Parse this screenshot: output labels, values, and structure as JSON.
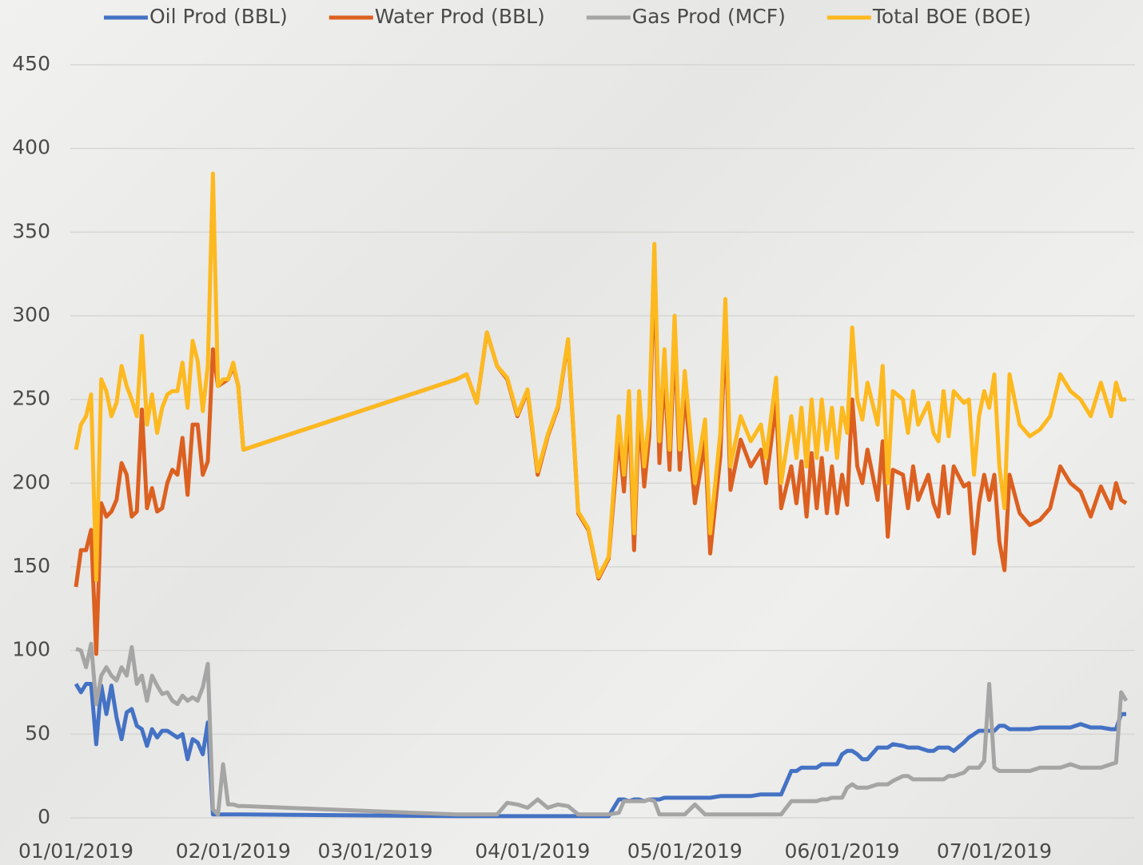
{
  "chart_data": {
    "type": "line",
    "x": [
      "01/01/2019",
      "01/02/2019",
      "01/03/2019",
      "01/04/2019",
      "01/05/2019",
      "01/06/2019",
      "01/07/2019",
      "01/08/2019",
      "01/09/2019",
      "01/10/2019",
      "01/11/2019",
      "01/12/2019",
      "01/13/2019",
      "01/14/2019",
      "01/15/2019",
      "01/16/2019",
      "01/17/2019",
      "01/18/2019",
      "01/19/2019",
      "01/20/2019",
      "01/21/2019",
      "01/22/2019",
      "01/23/2019",
      "01/24/2019",
      "01/25/2019",
      "01/26/2019",
      "01/27/2019",
      "01/28/2019",
      "01/29/2019",
      "01/30/2019",
      "01/31/2019",
      "02/01/2019",
      "02/02/2019",
      "02/03/2019",
      "03/17/2019",
      "03/19/2019",
      "03/21/2019",
      "03/23/2019",
      "03/25/2019",
      "03/27/2019",
      "03/29/2019",
      "03/31/2019",
      "04/02/2019",
      "04/04/2019",
      "04/06/2019",
      "04/08/2019",
      "04/10/2019",
      "04/12/2019",
      "04/14/2019",
      "04/16/2019",
      "04/18/2019",
      "04/19/2019",
      "04/20/2019",
      "04/21/2019",
      "04/22/2019",
      "04/23/2019",
      "04/24/2019",
      "04/25/2019",
      "04/26/2019",
      "04/27/2019",
      "04/28/2019",
      "04/29/2019",
      "04/30/2019",
      "05/01/2019",
      "05/03/2019",
      "05/05/2019",
      "05/06/2019",
      "05/08/2019",
      "05/09/2019",
      "05/10/2019",
      "05/12/2019",
      "05/14/2019",
      "05/16/2019",
      "05/17/2019",
      "05/19/2019",
      "05/20/2019",
      "05/22/2019",
      "05/23/2019",
      "05/24/2019",
      "05/25/2019",
      "05/26/2019",
      "05/27/2019",
      "05/28/2019",
      "05/29/2019",
      "05/30/2019",
      "05/31/2019",
      "06/01/2019",
      "06/02/2019",
      "06/03/2019",
      "06/04/2019",
      "06/05/2019",
      "06/06/2019",
      "06/08/2019",
      "06/09/2019",
      "06/10/2019",
      "06/11/2019",
      "06/13/2019",
      "06/14/2019",
      "06/15/2019",
      "06/16/2019",
      "06/18/2019",
      "06/19/2019",
      "06/20/2019",
      "06/21/2019",
      "06/22/2019",
      "06/23/2019",
      "06/25/2019",
      "06/26/2019",
      "06/27/2019",
      "06/28/2019",
      "06/29/2019",
      "06/30/2019",
      "07/01/2019",
      "07/02/2019",
      "07/03/2019",
      "07/04/2019",
      "07/06/2019",
      "07/08/2019",
      "07/10/2019",
      "07/12/2019",
      "07/14/2019",
      "07/16/2019",
      "07/18/2019",
      "07/20/2019",
      "07/22/2019",
      "07/24/2019",
      "07/25/2019",
      "07/26/2019",
      "07/27/2019"
    ],
    "series": [
      {
        "name": "Oil Prod (BBL)",
        "color": "#4472c4",
        "values": [
          80,
          75,
          80,
          80,
          44,
          79,
          62,
          79,
          60,
          47,
          63,
          65,
          55,
          53,
          43,
          53,
          48,
          52,
          52,
          50,
          48,
          50,
          35,
          47,
          45,
          38,
          57,
          2,
          2,
          2,
          2,
          2,
          2,
          2,
          1,
          1,
          1,
          1,
          1,
          1,
          1,
          1,
          1,
          1,
          1,
          1,
          1,
          1,
          1,
          1,
          11,
          11,
          10,
          11,
          11,
          10,
          11,
          11,
          11,
          12,
          12,
          12,
          12,
          12,
          12,
          12,
          12,
          13,
          13,
          13,
          13,
          13,
          14,
          14,
          14,
          14,
          28,
          28,
          30,
          30,
          30,
          30,
          32,
          32,
          32,
          32,
          38,
          40,
          40,
          38,
          35,
          35,
          42,
          42,
          42,
          44,
          43,
          42,
          42,
          42,
          40,
          40,
          42,
          42,
          42,
          40,
          45,
          48,
          50,
          52,
          52,
          52,
          52,
          55,
          55,
          53,
          53,
          53,
          54,
          54,
          54,
          54,
          56,
          54,
          54,
          53,
          53,
          62,
          62
        ]
      },
      {
        "name": "Water Prod (BBL)",
        "color": "#dc6020",
        "values": [
          138,
          160,
          160,
          172,
          98,
          188,
          180,
          183,
          190,
          212,
          205,
          180,
          183,
          244,
          185,
          197,
          183,
          185,
          200,
          208,
          205,
          227,
          193,
          235,
          235,
          205,
          213,
          280,
          258,
          260,
          262,
          270,
          258,
          220,
          262,
          265,
          248,
          290,
          270,
          262,
          240,
          255,
          205,
          228,
          245,
          285,
          182,
          172,
          143,
          155,
          228,
          195,
          245,
          160,
          243,
          198,
          228,
          330,
          212,
          268,
          208,
          288,
          208,
          255,
          188,
          225,
          158,
          216,
          295,
          196,
          226,
          210,
          220,
          200,
          248,
          185,
          210,
          188,
          213,
          180,
          218,
          185,
          215,
          182,
          210,
          182,
          205,
          187,
          250,
          210,
          200,
          220,
          190,
          225,
          168,
          208,
          205,
          185,
          210,
          190,
          205,
          188,
          180,
          210,
          182,
          210,
          198,
          200,
          158,
          188,
          205,
          190,
          205,
          165,
          148,
          205,
          182,
          175,
          178,
          185,
          210,
          200,
          195,
          180,
          198,
          185,
          200,
          190,
          188
        ]
      },
      {
        "name": "Gas Prod (MCF)",
        "color": "#a5a5a5",
        "values": [
          101,
          100,
          90,
          104,
          68,
          85,
          90,
          85,
          82,
          90,
          85,
          102,
          80,
          85,
          70,
          85,
          79,
          74,
          75,
          70,
          68,
          73,
          70,
          72,
          70,
          78,
          92,
          5,
          2,
          32,
          8,
          8,
          7,
          7,
          2,
          2,
          2,
          2,
          2,
          9,
          8,
          6,
          11,
          6,
          8,
          7,
          2,
          2,
          2,
          2,
          3,
          10,
          10,
          10,
          10,
          10,
          11,
          10,
          2,
          2,
          2,
          2,
          2,
          2,
          8,
          2,
          2,
          2,
          2,
          2,
          2,
          2,
          2,
          2,
          2,
          2,
          10,
          10,
          10,
          10,
          10,
          10,
          11,
          11,
          12,
          12,
          12,
          18,
          20,
          18,
          18,
          18,
          20,
          20,
          20,
          22,
          25,
          25,
          23,
          23,
          23,
          23,
          23,
          23,
          25,
          25,
          27,
          30,
          30,
          30,
          34,
          80,
          30,
          28,
          28,
          28,
          28,
          28,
          30,
          30,
          30,
          32,
          30,
          30,
          30,
          32,
          33,
          75,
          70
        ]
      },
      {
        "name": "Total BOE (BOE)",
        "color": "#fdb91f",
        "values": [
          220,
          235,
          240,
          253,
          142,
          262,
          255,
          240,
          248,
          270,
          258,
          250,
          240,
          288,
          235,
          253,
          230,
          245,
          253,
          255,
          255,
          272,
          245,
          285,
          273,
          243,
          270,
          385,
          258,
          262,
          262,
          272,
          258,
          220,
          262,
          265,
          248,
          290,
          270,
          263,
          241,
          256,
          207,
          229,
          246,
          286,
          183,
          173,
          144,
          156,
          240,
          205,
          255,
          170,
          255,
          210,
          240,
          343,
          225,
          280,
          220,
          300,
          220,
          267,
          200,
          238,
          170,
          230,
          310,
          210,
          240,
          225,
          235,
          215,
          263,
          200,
          240,
          215,
          245,
          210,
          250,
          215,
          250,
          220,
          245,
          215,
          245,
          230,
          293,
          250,
          238,
          260,
          235,
          270,
          200,
          255,
          250,
          230,
          255,
          235,
          248,
          230,
          225,
          255,
          228,
          255,
          248,
          250,
          205,
          240,
          255,
          245,
          265,
          210,
          185,
          265,
          235,
          228,
          232,
          240,
          265,
          255,
          250,
          240,
          260,
          240,
          260,
          250,
          250
        ]
      }
    ],
    "xlim": [
      "01/01/2019",
      "07/27/2019"
    ],
    "xticks": [
      "01/01/2019",
      "02/01/2019",
      "03/01/2019",
      "04/01/2019",
      "05/01/2019",
      "06/01/2019",
      "07/01/2019"
    ],
    "ylim": [
      0,
      450
    ],
    "yticks": [
      0,
      50,
      100,
      150,
      200,
      250,
      300,
      350,
      400,
      450
    ],
    "grid": true,
    "legend": "top"
  }
}
